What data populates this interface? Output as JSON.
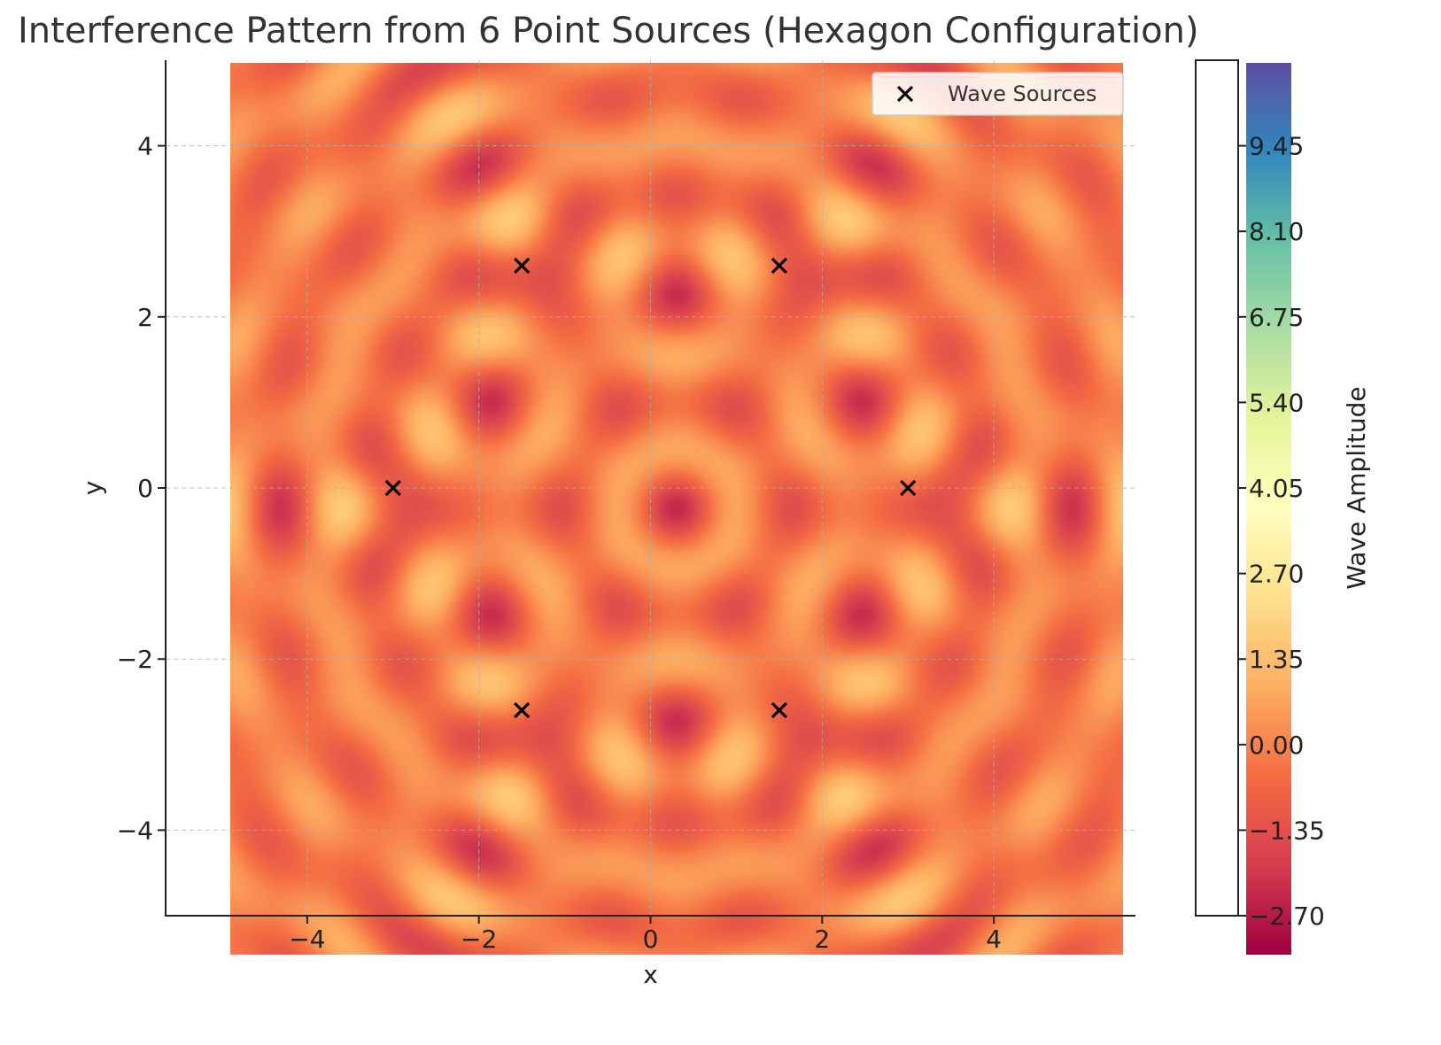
{
  "chart_data": {
    "type": "heatmap",
    "title": "Interference Pattern from 6 Point Sources (Hexagon Configuration)",
    "xlabel": "x",
    "ylabel": "y",
    "xlim": [
      -5.65,
      5.65
    ],
    "ylim": [
      -5,
      5
    ],
    "data_extent": {
      "x": [
        -5,
        5
      ],
      "y": [
        -5,
        5
      ]
    },
    "x_ticks": [
      -4,
      -2,
      0,
      2,
      4
    ],
    "x_tick_labels": [
      "−4",
      "−2",
      "0",
      "2",
      "4"
    ],
    "y_ticks": [
      -4,
      -2,
      0,
      2,
      4
    ],
    "y_tick_labels": [
      "−4",
      "−2",
      "0",
      "2",
      "4"
    ],
    "grid": true,
    "legend": {
      "position": "upper-right",
      "label": "Wave Sources",
      "marker": "x",
      "marker_color": "#000000"
    },
    "sources": {
      "x": [
        3.0,
        1.5,
        -1.5,
        -3.0,
        -1.5,
        1.5
      ],
      "y": [
        0.0,
        2.598,
        2.598,
        0.0,
        -2.598,
        -2.598
      ]
    },
    "wave": {
      "wavenumber": 5.5,
      "radius": 3.0,
      "amplitude_min": -2.7,
      "amplitude_max": 10.8
    },
    "colormap": "Spectral",
    "colorbar": {
      "label": "Wave Amplitude",
      "range": [
        -2.7,
        10.8
      ],
      "ticks": [
        -2.7,
        -1.35,
        0.0,
        1.35,
        2.7,
        4.05,
        5.4,
        6.75,
        8.1,
        9.45
      ],
      "tick_labels": [
        "−2.70",
        "−1.35",
        "0.00",
        "1.35",
        "2.70",
        "4.05",
        "5.40",
        "6.75",
        "8.10",
        "9.45"
      ]
    },
    "colors": {
      "stops": [
        "#9e0142",
        "#d53e4f",
        "#f46d43",
        "#fdae61",
        "#fee08b",
        "#ffffbf",
        "#e6f598",
        "#abdda4",
        "#66c2a5",
        "#3288bd",
        "#5e4fa2"
      ],
      "axis": "#222222",
      "grid": "#b0b0b0"
    }
  }
}
